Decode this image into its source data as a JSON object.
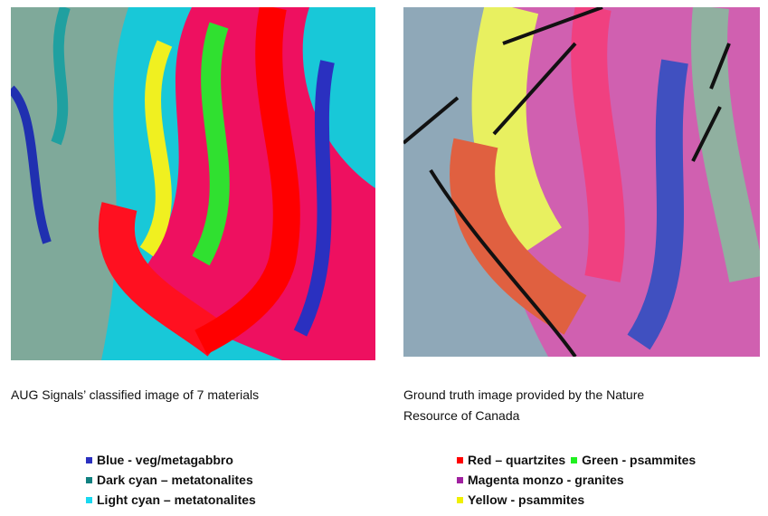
{
  "left": {
    "caption": "AUG Signals’ classified image of 7 materials",
    "legend": [
      [
        "Blue - veg/metagabbro"
      ],
      [
        "Dark cyan – metatonalites"
      ],
      [
        "Light cyan – metatonalites"
      ]
    ]
  },
  "right": {
    "caption": [
      "Ground truth image provided by the Nature",
      "Resource of Canada"
    ],
    "legend": [
      [
        "Red – quartzites",
        "Green - psammites"
      ],
      [
        "Magenta monzo - granites"
      ],
      [
        "Yellow - psammites"
      ]
    ]
  }
}
